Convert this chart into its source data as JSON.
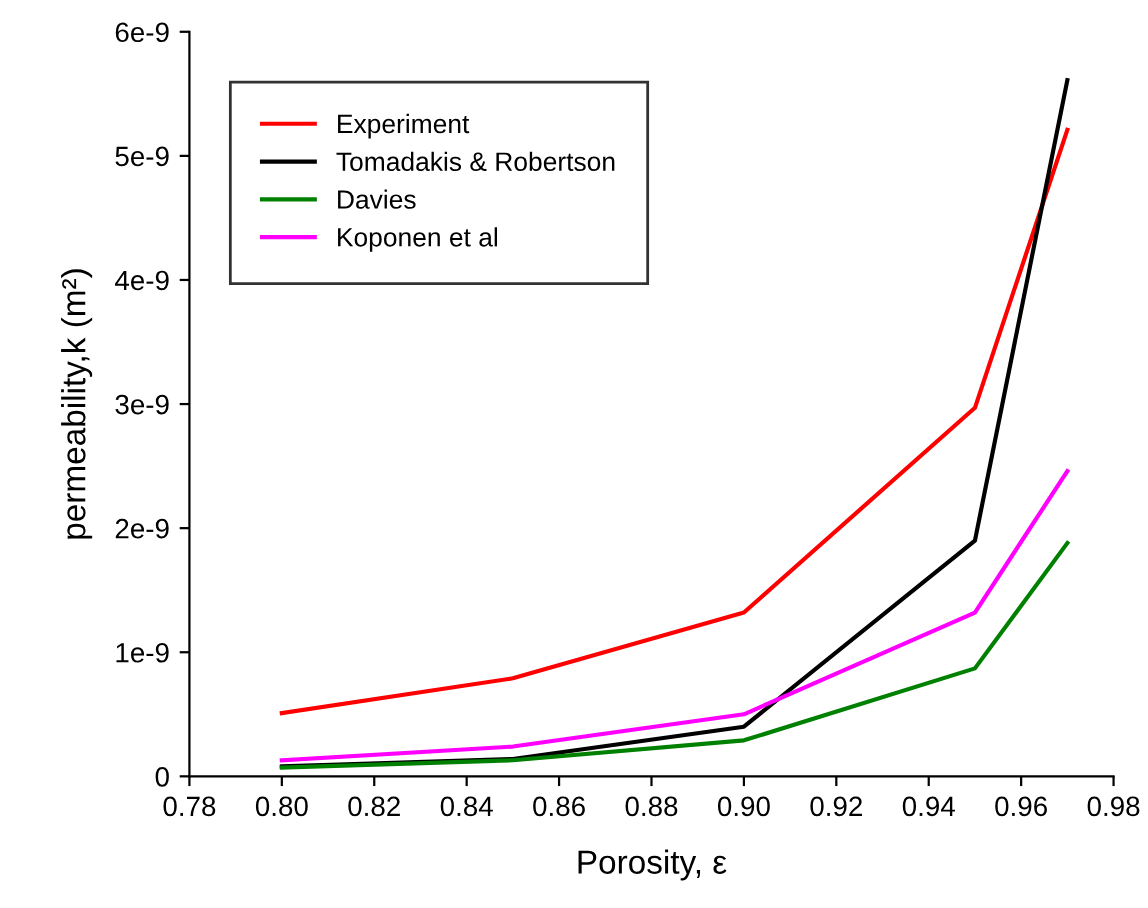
{
  "chart_data": {
    "type": "line",
    "xlabel": "Porosity, ε",
    "ylabel": "permeability,k (m²)",
    "x": [
      0.8,
      0.85,
      0.9,
      0.95,
      0.97
    ],
    "series": [
      {
        "name": "Experiment",
        "color": "#ff0000",
        "values": [
          5.1e-10,
          7.9e-10,
          1.32e-09,
          2.97e-09,
          5.21e-09
        ]
      },
      {
        "name": "Tomadakis & Robertson",
        "color": "#000000",
        "values": [
          8e-11,
          1.4e-10,
          4e-10,
          1.9e-09,
          5.61e-09
        ]
      },
      {
        "name": "Davies",
        "color": "#008000",
        "values": [
          7e-11,
          1.3e-10,
          2.9e-10,
          8.7e-10,
          1.88e-09
        ]
      },
      {
        "name": "Koponen et al",
        "color": "#ff00ff",
        "values": [
          1.3e-10,
          2.4e-10,
          5e-10,
          1.32e-09,
          2.46e-09
        ]
      }
    ],
    "xlim": [
      0.78,
      0.98
    ],
    "xticks": [
      0.78,
      {
        "value": 0.8,
        "label": "0.80"
      },
      0.82,
      0.84,
      0.86,
      0.88,
      {
        "value": 0.9,
        "label": "0.90"
      },
      0.92,
      0.94,
      0.96,
      0.98
    ],
    "ylim": [
      0,
      6e-09
    ],
    "yticks": [
      0,
      {
        "value": 1e-09,
        "label": "1e-9"
      },
      {
        "value": 2e-09,
        "label": "2e-9"
      },
      {
        "value": 3e-09,
        "label": "3e-9"
      },
      {
        "value": 4e-09,
        "label": "4e-9"
      },
      {
        "value": 5e-09,
        "label": "5e-9"
      },
      {
        "value": 6e-09,
        "label": "6e-9"
      }
    ],
    "grid": false,
    "legend": "top left",
    "marker": "none",
    "line_style": "solid"
  }
}
